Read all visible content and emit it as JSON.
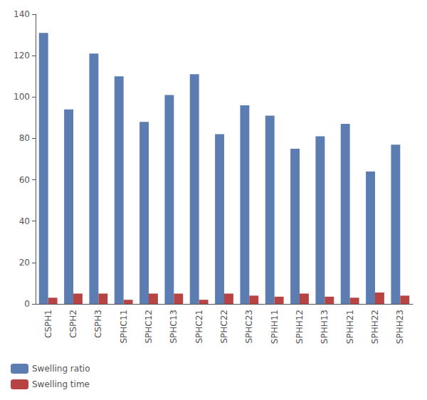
{
  "chart_data": {
    "type": "bar",
    "categories": [
      "CSPH1",
      "CSPH2",
      "CSPH3",
      "SPHC11",
      "SPHC12",
      "SPHC13",
      "SPHC21",
      "SPHC22",
      "SPHC23",
      "SPHH11",
      "SPHH12",
      "SPHH13",
      "SPHH21",
      "SPHH22",
      "SPHH23"
    ],
    "series": [
      {
        "name": "Swelling ratio",
        "color": "#5b7db1",
        "values": [
          131,
          94,
          121,
          110,
          88,
          101,
          111,
          82,
          96,
          91,
          75,
          81,
          87,
          64,
          77
        ]
      },
      {
        "name": "Swelling time",
        "color": "#b84343",
        "values": [
          3,
          5,
          5,
          2,
          5,
          5,
          2,
          5,
          4,
          3.5,
          5,
          3.5,
          3,
          5.5,
          4
        ]
      }
    ],
    "ylim": [
      0,
      140
    ],
    "yticks": [
      0,
      20,
      40,
      60,
      80,
      100,
      120,
      140
    ],
    "grid": false,
    "legend": "lower left"
  }
}
